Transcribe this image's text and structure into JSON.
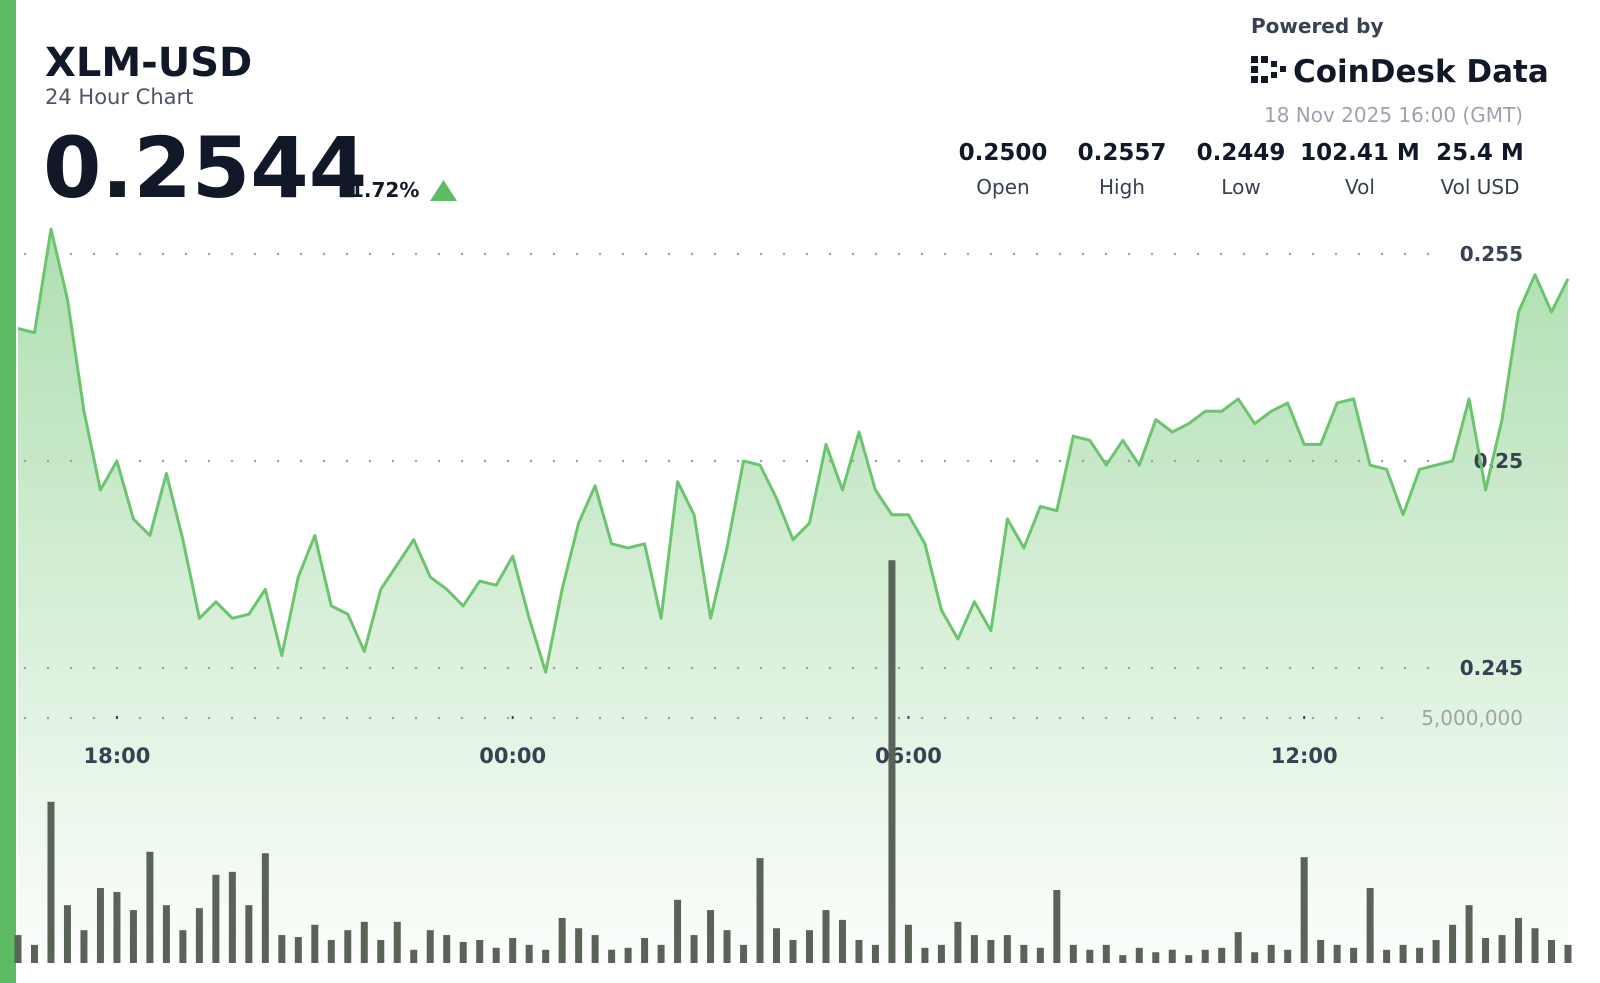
{
  "chart_data": {
    "type": "line",
    "title": "XLM-USD",
    "subtitle": "24 Hour Chart",
    "price": "0.2544",
    "change": "1.72%",
    "powered_by": "Powered by",
    "brand": "CoinDesk Data",
    "timestamp": "18 Nov 2025 16:00 (GMT)",
    "stats": [
      {
        "value": "0.2500",
        "label": "Open"
      },
      {
        "value": "0.2557",
        "label": "High"
      },
      {
        "value": "0.2449",
        "label": "Low"
      },
      {
        "value": "102.41 M",
        "label": "Vol"
      },
      {
        "value": "25.4 M",
        "label": "Vol USD"
      }
    ],
    "x": [
      "16:30",
      "16:45",
      "17:00",
      "17:15",
      "17:30",
      "17:45",
      "18:00",
      "18:15",
      "18:30",
      "18:45",
      "19:00",
      "19:15",
      "19:30",
      "19:45",
      "20:00",
      "20:15",
      "20:30",
      "20:45",
      "21:00",
      "21:15",
      "21:30",
      "21:45",
      "22:00",
      "22:15",
      "22:30",
      "22:45",
      "23:00",
      "23:15",
      "23:30",
      "23:45",
      "00:00",
      "00:15",
      "00:30",
      "00:45",
      "01:00",
      "01:15",
      "01:30",
      "01:45",
      "02:00",
      "02:15",
      "02:30",
      "02:45",
      "03:00",
      "03:15",
      "03:30",
      "03:45",
      "04:00",
      "04:15",
      "04:30",
      "04:45",
      "05:00",
      "05:15",
      "05:30",
      "05:45",
      "06:00",
      "06:15",
      "06:30",
      "06:45",
      "07:00",
      "07:15",
      "07:30",
      "07:45",
      "08:00",
      "08:15",
      "08:30",
      "08:45",
      "09:00",
      "09:15",
      "09:30",
      "09:45",
      "10:00",
      "10:15",
      "10:30",
      "10:45",
      "11:00",
      "11:15",
      "11:30",
      "11:45",
      "12:00",
      "12:15",
      "12:30",
      "12:45",
      "13:00",
      "13:15",
      "13:30",
      "13:45",
      "14:00",
      "14:15",
      "14:30",
      "14:45",
      "15:00",
      "15:15",
      "15:30",
      "15:45",
      "16:00"
    ],
    "xticks": [
      "18:00",
      "00:00",
      "06:00",
      "12:00"
    ],
    "ylim": [
      0.244,
      0.256
    ],
    "yticks": [
      0.245,
      0.25,
      0.255
    ],
    "y2lim": [
      0,
      10000000
    ],
    "y2ticks": [
      {
        "value": 5000000,
        "label": "5,000,000"
      }
    ],
    "series": [
      {
        "type": "line",
        "color": "#6cc46f",
        "values": [
          0.2532,
          0.2531,
          0.2556,
          0.2539,
          0.2512,
          0.2493,
          0.25,
          0.2486,
          0.2482,
          0.2497,
          0.2481,
          0.2462,
          0.2466,
          0.2462,
          0.2463,
          0.2469,
          0.2453,
          0.2472,
          0.2482,
          0.2465,
          0.2463,
          0.2454,
          0.2469,
          0.2475,
          0.2481,
          0.2472,
          0.2469,
          0.2465,
          0.2471,
          0.247,
          0.2477,
          0.2462,
          0.2449,
          0.2469,
          0.2485,
          0.2494,
          0.248,
          0.2479,
          0.248,
          0.2462,
          0.2495,
          0.2487,
          0.2462,
          0.2479,
          0.25,
          0.2499,
          0.2491,
          0.2481,
          0.2485,
          0.2504,
          0.2493,
          0.2507,
          0.2493,
          0.2487,
          0.2487,
          0.248,
          0.2464,
          0.2457,
          0.2466,
          0.2459,
          0.2486,
          0.2479,
          0.2489,
          0.2488,
          0.2506,
          0.2505,
          0.2499,
          0.2505,
          0.2499,
          0.251,
          0.2507,
          0.2509,
          0.2512,
          0.2512,
          0.2515,
          0.2509,
          0.2512,
          0.2514,
          0.2504,
          0.2504,
          0.2514,
          0.2515,
          0.2499,
          0.2498,
          0.2487,
          0.2498,
          0.2499,
          0.25,
          0.2515,
          0.2493,
          0.251,
          0.2536,
          0.2545,
          0.2536,
          0.2544
        ]
      },
      {
        "type": "bar",
        "axis": "y2",
        "color": "#5a6358",
        "values": [
          570000,
          370000,
          3290000,
          1180000,
          670000,
          1530000,
          1450000,
          1080000,
          2270000,
          1180000,
          670000,
          1120000,
          1800000,
          1860000,
          1180000,
          2240000,
          570000,
          530000,
          780000,
          470000,
          670000,
          840000,
          470000,
          840000,
          270000,
          670000,
          570000,
          430000,
          470000,
          310000,
          510000,
          370000,
          270000,
          920000,
          710000,
          570000,
          270000,
          310000,
          510000,
          370000,
          1290000,
          570000,
          1080000,
          670000,
          370000,
          2140000,
          710000,
          470000,
          670000,
          1080000,
          880000,
          470000,
          370000,
          8220000,
          780000,
          310000,
          370000,
          840000,
          570000,
          470000,
          570000,
          370000,
          310000,
          1490000,
          370000,
          270000,
          370000,
          160000,
          310000,
          220000,
          270000,
          160000,
          270000,
          310000,
          630000,
          220000,
          370000,
          270000,
          2160000,
          470000,
          370000,
          310000,
          1530000,
          270000,
          370000,
          310000,
          470000,
          780000,
          1180000,
          510000,
          570000,
          920000,
          710000,
          470000,
          370000
        ]
      }
    ]
  }
}
